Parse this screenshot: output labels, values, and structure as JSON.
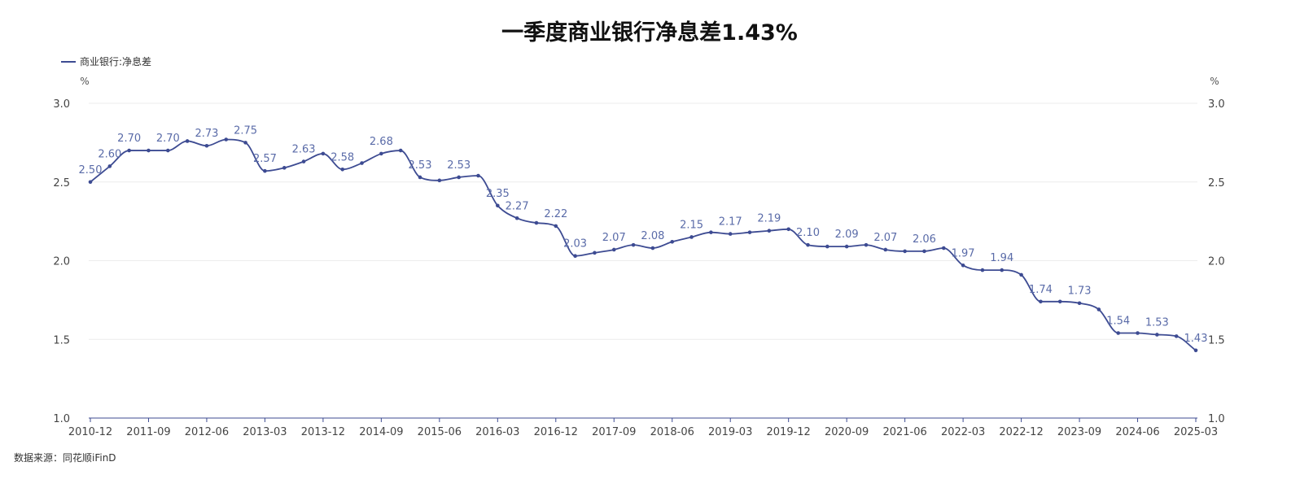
{
  "chart_data": {
    "type": "line",
    "title": "一季度商业银行净息差1.43%",
    "xlabel": "",
    "ylabel": "",
    "y_unit_left": "%",
    "y_unit_right": "%",
    "ylim": [
      1.0,
      3.0
    ],
    "yticks": [
      "1.0",
      "1.5",
      "2.0",
      "2.5",
      "3.0"
    ],
    "xtick_labels": [
      "2010-12",
      "2011-09",
      "2012-06",
      "2013-03",
      "2013-12",
      "2014-09",
      "2015-06",
      "2016-03",
      "2016-12",
      "2017-09",
      "2018-06",
      "2019-03",
      "2019-12",
      "2020-09",
      "2021-06",
      "2022-03",
      "2022-12",
      "2023-09",
      "2024-06",
      "2025-03"
    ],
    "legend": {
      "position": "top-left",
      "label": "商业银行:净息差"
    },
    "grid": true,
    "color": "#3d4b92",
    "series": [
      {
        "name": "商业银行:净息差",
        "points": [
          {
            "x": "2010-12",
            "y": 2.5,
            "label": "2.50"
          },
          {
            "x": "2011-03",
            "y": 2.6,
            "label": "2.60"
          },
          {
            "x": "2011-06",
            "y": 2.7,
            "label": "2.70"
          },
          {
            "x": "2011-09",
            "y": 2.7
          },
          {
            "x": "2011-12",
            "y": 2.7,
            "label": "2.70"
          },
          {
            "x": "2012-03",
            "y": 2.76
          },
          {
            "x": "2012-06",
            "y": 2.73,
            "label": "2.73"
          },
          {
            "x": "2012-09",
            "y": 2.77
          },
          {
            "x": "2012-12",
            "y": 2.75,
            "label": "2.75"
          },
          {
            "x": "2013-03",
            "y": 2.57,
            "label": "2.57"
          },
          {
            "x": "2013-06",
            "y": 2.59
          },
          {
            "x": "2013-09",
            "y": 2.63,
            "label": "2.63"
          },
          {
            "x": "2013-12",
            "y": 2.68
          },
          {
            "x": "2014-03",
            "y": 2.58,
            "label": "2.58"
          },
          {
            "x": "2014-06",
            "y": 2.62
          },
          {
            "x": "2014-09",
            "y": 2.68,
            "label": "2.68"
          },
          {
            "x": "2014-12",
            "y": 2.7
          },
          {
            "x": "2015-03",
            "y": 2.53,
            "label": "2.53"
          },
          {
            "x": "2015-06",
            "y": 2.51
          },
          {
            "x": "2015-09",
            "y": 2.53,
            "label": "2.53"
          },
          {
            "x": "2015-12",
            "y": 2.54
          },
          {
            "x": "2016-03",
            "y": 2.35,
            "label": "2.35"
          },
          {
            "x": "2016-06",
            "y": 2.27,
            "label": "2.27"
          },
          {
            "x": "2016-09",
            "y": 2.24
          },
          {
            "x": "2016-12",
            "y": 2.22,
            "label": "2.22"
          },
          {
            "x": "2017-03",
            "y": 2.03,
            "label": "2.03"
          },
          {
            "x": "2017-06",
            "y": 2.05
          },
          {
            "x": "2017-09",
            "y": 2.07,
            "label": "2.07"
          },
          {
            "x": "2017-12",
            "y": 2.1
          },
          {
            "x": "2018-03",
            "y": 2.08,
            "label": "2.08"
          },
          {
            "x": "2018-06",
            "y": 2.12
          },
          {
            "x": "2018-09",
            "y": 2.15,
            "label": "2.15"
          },
          {
            "x": "2018-12",
            "y": 2.18
          },
          {
            "x": "2019-03",
            "y": 2.17,
            "label": "2.17"
          },
          {
            "x": "2019-06",
            "y": 2.18
          },
          {
            "x": "2019-09",
            "y": 2.19,
            "label": "2.19"
          },
          {
            "x": "2019-12",
            "y": 2.2
          },
          {
            "x": "2020-03",
            "y": 2.1,
            "label": "2.10"
          },
          {
            "x": "2020-06",
            "y": 2.09
          },
          {
            "x": "2020-09",
            "y": 2.09,
            "label": "2.09"
          },
          {
            "x": "2020-12",
            "y": 2.1
          },
          {
            "x": "2021-03",
            "y": 2.07,
            "label": "2.07"
          },
          {
            "x": "2021-06",
            "y": 2.06
          },
          {
            "x": "2021-09",
            "y": 2.06,
            "label": "2.06"
          },
          {
            "x": "2021-12",
            "y": 2.08
          },
          {
            "x": "2022-03",
            "y": 1.97,
            "label": "1.97"
          },
          {
            "x": "2022-06",
            "y": 1.94
          },
          {
            "x": "2022-09",
            "y": 1.94,
            "label": "1.94"
          },
          {
            "x": "2022-12",
            "y": 1.91
          },
          {
            "x": "2023-03",
            "y": 1.74,
            "label": "1.74"
          },
          {
            "x": "2023-06",
            "y": 1.74
          },
          {
            "x": "2023-09",
            "y": 1.73,
            "label": "1.73"
          },
          {
            "x": "2023-12",
            "y": 1.69
          },
          {
            "x": "2024-03",
            "y": 1.54,
            "label": "1.54"
          },
          {
            "x": "2024-06",
            "y": 1.54
          },
          {
            "x": "2024-09",
            "y": 1.53,
            "label": "1.53"
          },
          {
            "x": "2024-12",
            "y": 1.52
          },
          {
            "x": "2025-03",
            "y": 1.43,
            "label": "1.43"
          }
        ]
      }
    ]
  },
  "source": "数据来源：同花顺iFinD"
}
